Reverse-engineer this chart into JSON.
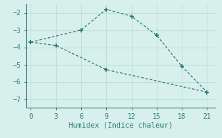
{
  "line1_x": [
    0,
    6,
    9,
    12,
    15,
    18,
    21
  ],
  "line1_y": [
    -3.7,
    -3.0,
    -1.8,
    -2.2,
    -3.3,
    -5.1,
    -6.6
  ],
  "line2_x": [
    0,
    3,
    9,
    21
  ],
  "line2_y": [
    -3.7,
    -3.9,
    -5.3,
    -6.6
  ],
  "line_color": "#2a7a72",
  "bg_color": "#d8f0ec",
  "grid_color": "#c0e0dc",
  "spine_color": "#2a7a72",
  "xlabel": "Humidex (Indice chaleur)",
  "xlim": [
    -0.5,
    22
  ],
  "ylim": [
    -7.5,
    -1.5
  ],
  "xticks": [
    0,
    3,
    6,
    9,
    12,
    15,
    18,
    21
  ],
  "yticks": [
    -7,
    -6,
    -5,
    -4,
    -3,
    -2
  ],
  "xlabel_fontsize": 7.5,
  "tick_fontsize": 7
}
